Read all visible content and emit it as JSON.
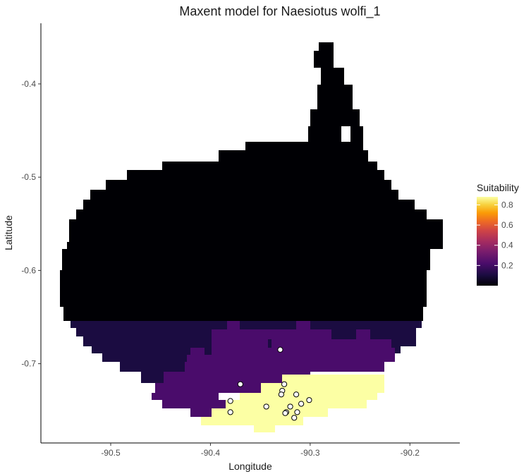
{
  "chart_data": {
    "type": "heatmap",
    "title": "Maxent model for Naesiotus wolfi_1",
    "xlabel": "Longitude",
    "ylabel": "Latitude",
    "xlim": [
      -90.57,
      -90.15
    ],
    "ylim": [
      -0.785,
      -0.335
    ],
    "x_ticks": [
      -90.5,
      -90.4,
      -90.3,
      -90.2
    ],
    "x_tick_labels": [
      "-90.5",
      "-90.4",
      "-90.3",
      "-90.2"
    ],
    "y_ticks": [
      -0.4,
      -0.5,
      -0.6,
      -0.7
    ],
    "y_tick_labels": [
      "-0.4",
      "-0.5",
      "-0.6",
      "-0.7"
    ],
    "grid": false,
    "legend": {
      "title": "Suitability",
      "placement": "right",
      "breaks": [
        0.2,
        0.4,
        0.6,
        0.8
      ],
      "break_labels": [
        "0.2",
        "0.4",
        "0.6",
        "0.8"
      ],
      "range": [
        0.0,
        0.88
      ],
      "colormap": "inferno"
    },
    "colors": {
      "low": "#000004",
      "mid_low": "#1b0c41",
      "mid": "#4a0c6b",
      "high": "#fcffa4"
    },
    "raster": {
      "cell_size_deg": 0.0083,
      "bands": [
        {
          "lat_top": -0.355,
          "lat_bottom": -0.665,
          "value": 0.02,
          "outline": "upper island mass with northeastern peninsula"
        },
        {
          "lat_top": -0.665,
          "lat_bottom": -0.705,
          "value": 0.06
        },
        {
          "lat_top": -0.69,
          "lat_bottom": -0.745,
          "value": 0.33
        },
        {
          "lat_top": -0.715,
          "lat_bottom": -0.772,
          "value": 0.88
        }
      ]
    },
    "occurrences": [
      {
        "lon": -90.33,
        "lat": -0.685
      },
      {
        "lon": -90.37,
        "lat": -0.722
      },
      {
        "lon": -90.326,
        "lat": -0.722
      },
      {
        "lon": -90.328,
        "lat": -0.729
      },
      {
        "lon": -90.329,
        "lat": -0.733
      },
      {
        "lon": -90.314,
        "lat": -0.733
      },
      {
        "lon": -90.38,
        "lat": -0.74
      },
      {
        "lon": -90.301,
        "lat": -0.739
      },
      {
        "lon": -90.309,
        "lat": -0.743
      },
      {
        "lon": -90.344,
        "lat": -0.746
      },
      {
        "lon": -90.32,
        "lat": -0.746
      },
      {
        "lon": -90.38,
        "lat": -0.752
      },
      {
        "lon": -90.324,
        "lat": -0.752
      },
      {
        "lon": -90.325,
        "lat": -0.753
      },
      {
        "lon": -90.313,
        "lat": -0.752
      },
      {
        "lon": -90.316,
        "lat": -0.758
      }
    ]
  }
}
